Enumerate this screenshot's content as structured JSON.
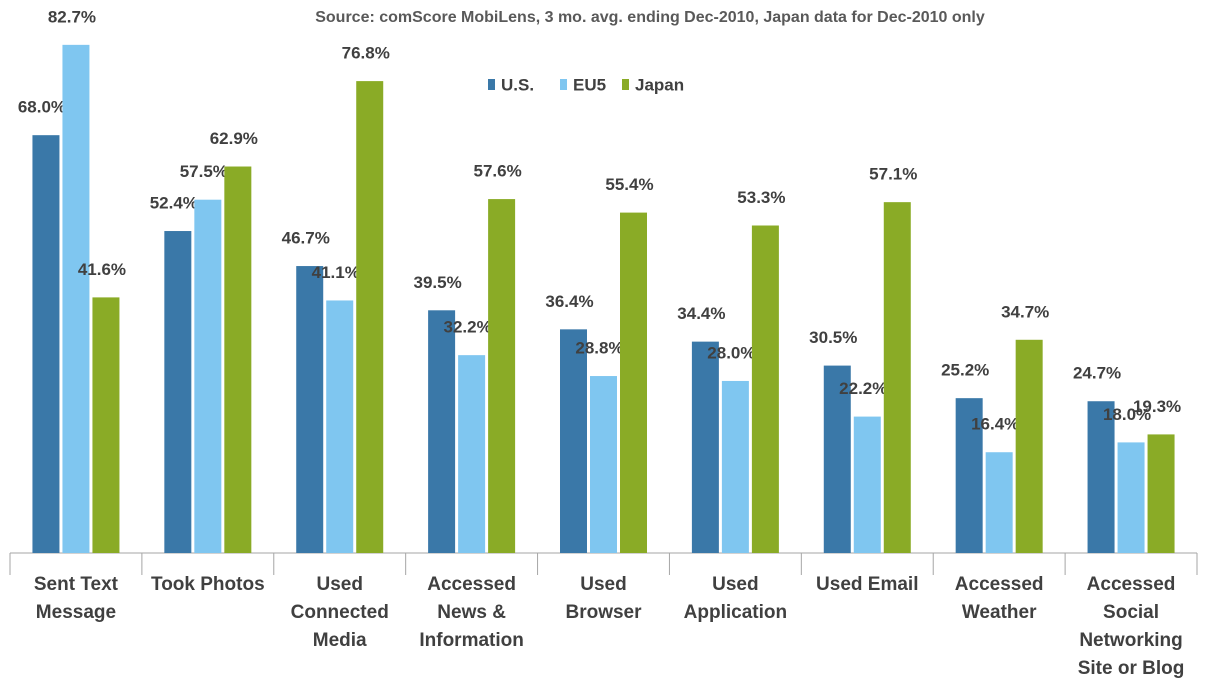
{
  "chart_data": {
    "type": "bar",
    "title": "Source: comScore MobiLens, 3 mo. avg. ending Dec-2010, Japan data for Dec-2010 only",
    "categories": [
      "Sent Text Message",
      "Took Photos",
      "Used Connected Media",
      "Accessed News & Information",
      "Used Browser",
      "Used Application",
      "Used Email",
      "Accessed Weather",
      "Accessed Social Networking Site or Blog"
    ],
    "series": [
      {
        "name": "U.S.",
        "color": "#3a78a8",
        "values": [
          68.0,
          52.4,
          46.7,
          39.5,
          36.4,
          34.4,
          30.5,
          25.2,
          24.7
        ],
        "value_labels": [
          "68.0%",
          "52.4%",
          "46.7%",
          "39.5%",
          "36.4%",
          "34.4%",
          "30.5%",
          "25.2%",
          "24.7%"
        ]
      },
      {
        "name": "EU5",
        "color": "#7fc6f0",
        "values": [
          82.7,
          57.5,
          41.1,
          32.2,
          28.8,
          28.0,
          22.2,
          16.4,
          18.0
        ],
        "value_labels": [
          "82.7%",
          "57.5%",
          "41.1%",
          "32.2%",
          "28.8%",
          "28.0%",
          "22.2%",
          "16.4%",
          "18.0%"
        ]
      },
      {
        "name": "Japan",
        "color": "#8aab26",
        "values": [
          41.6,
          62.9,
          76.8,
          57.6,
          55.4,
          53.3,
          57.1,
          34.7,
          19.3
        ],
        "value_labels": [
          "41.6%",
          "62.9%",
          "76.8%",
          "57.6%",
          "55.4%",
          "53.3%",
          "57.1%",
          "34.7%",
          "19.3%"
        ]
      }
    ],
    "ylim": [
      0,
      90
    ]
  }
}
